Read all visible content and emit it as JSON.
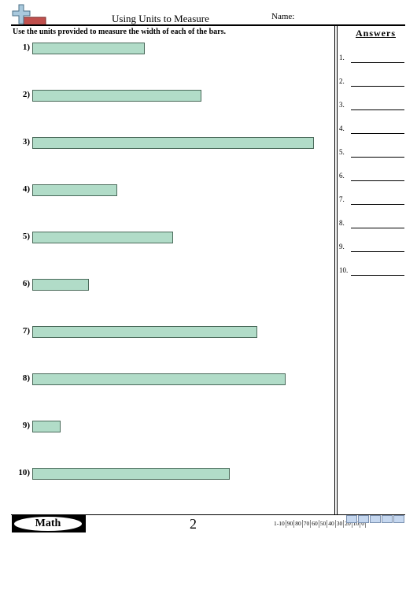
{
  "header": {
    "title": "Using Units to Measure",
    "name_label": "Name:"
  },
  "instructions": "Use the units provided to measure the width of each of the bars.",
  "problems": [
    "1)",
    "2)",
    "3)",
    "4)",
    "5)",
    "6)",
    "7)",
    "8)",
    "9)",
    "10)"
  ],
  "answers": {
    "title": "Answers",
    "numbers": [
      "1.",
      "2.",
      "3.",
      "4.",
      "5.",
      "6.",
      "7.",
      "8.",
      "9.",
      "10."
    ]
  },
  "footer": {
    "brand": "Math",
    "page": "2",
    "score_labels": [
      "1-10",
      "90",
      "80",
      "70",
      "60",
      "50",
      "40",
      "30",
      "20",
      "10",
      "0"
    ]
  }
}
